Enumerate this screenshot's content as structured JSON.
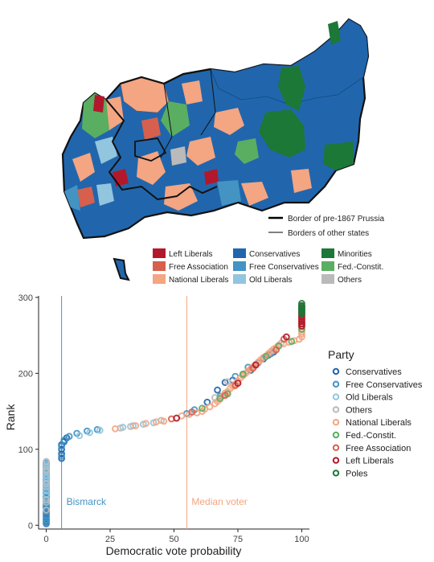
{
  "map": {
    "border_legend": [
      {
        "label": "Border of pre-1867 Prussia",
        "style": "thick"
      },
      {
        "label": "Borders of other states",
        "style": "thin"
      }
    ],
    "party_legend": [
      {
        "label": "Left Liberals",
        "color": "#b2182b"
      },
      {
        "label": "Conservatives",
        "color": "#2166ac"
      },
      {
        "label": "Minorities",
        "color": "#1b7837"
      },
      {
        "label": "Free Association",
        "color": "#d6604d"
      },
      {
        "label": "Free Conservatives",
        "color": "#4393c3"
      },
      {
        "label": "Fed.-Constit.",
        "color": "#5aae61"
      },
      {
        "label": "National Liberals",
        "color": "#f4a582"
      },
      {
        "label": "Old Liberals",
        "color": "#92c5de"
      },
      {
        "label": "Others",
        "color": "#bababa"
      }
    ]
  },
  "chart_data": {
    "type": "scatter",
    "xlabel": "Democratic vote probability",
    "ylabel": "Rank",
    "xlim": [
      -3,
      103
    ],
    "ylim": [
      -5,
      302
    ],
    "x_ticks": [
      0,
      25,
      50,
      75,
      100
    ],
    "y_ticks": [
      0,
      100,
      200,
      300
    ],
    "legend_position": "right",
    "legend_title": "Party",
    "vlines": [
      {
        "x": 6,
        "label": "Bismarck",
        "color": "#4393c3"
      },
      {
        "x": 55,
        "label": "Median voter",
        "color": "#f4a582"
      }
    ],
    "series": [
      {
        "name": "Conservatives",
        "color": "#2166ac",
        "x": [
          0,
          0,
          0,
          0,
          0,
          0,
          0,
          0,
          0,
          0,
          0,
          0,
          0,
          0,
          0,
          0,
          0,
          0,
          0,
          0,
          0,
          0,
          0,
          0,
          0,
          0,
          0,
          0,
          6,
          6,
          6,
          6,
          7,
          8,
          63,
          67,
          70,
          73,
          77,
          80,
          85,
          87,
          89
        ],
        "y": [
          2,
          5,
          8,
          11,
          14,
          17,
          20,
          23,
          26,
          29,
          32,
          35,
          38,
          41,
          44,
          47,
          50,
          53,
          56,
          59,
          62,
          65,
          68,
          71,
          74,
          77,
          80,
          82,
          88,
          94,
          100,
          106,
          110,
          115,
          162,
          178,
          188,
          191,
          198,
          204,
          219,
          224,
          228
        ]
      },
      {
        "name": "Free Conservatives",
        "color": "#4393c3",
        "x": [
          0,
          0,
          0,
          0,
          0,
          0,
          0,
          0,
          0,
          0,
          0,
          0,
          0,
          0,
          0,
          0,
          0,
          6,
          6,
          7,
          9,
          12,
          16,
          20,
          55,
          58,
          68,
          74,
          79,
          83,
          88
        ],
        "y": [
          3,
          7,
          12,
          18,
          24,
          30,
          36,
          42,
          47,
          52,
          57,
          61,
          66,
          71,
          76,
          79,
          81,
          91,
          104,
          112,
          117,
          121,
          124,
          126,
          147,
          152,
          170,
          196,
          208,
          214,
          226
        ]
      },
      {
        "name": "Old Liberals",
        "color": "#92c5de",
        "x": [
          0,
          0,
          0,
          0,
          0,
          0,
          0,
          0,
          0,
          0,
          0,
          0,
          0,
          0,
          13,
          17,
          21,
          30,
          34,
          38,
          42
        ],
        "y": [
          30,
          34,
          40,
          45,
          50,
          55,
          58,
          62,
          66,
          70,
          74,
          77,
          80,
          83,
          118,
          122,
          125,
          129,
          131,
          133,
          135
        ]
      },
      {
        "name": "Others",
        "color": "#bababa",
        "x": [
          0,
          0,
          0,
          0,
          0,
          29,
          33,
          45,
          66,
          71,
          92
        ],
        "y": [
          20,
          33,
          54,
          72,
          84,
          128,
          130,
          138,
          168,
          189,
          240
        ]
      },
      {
        "name": "National Liberals",
        "color": "#f4a582",
        "x": [
          27,
          35,
          39,
          43,
          46,
          53,
          56,
          59,
          61,
          62,
          64,
          66,
          67,
          68,
          69,
          70,
          71,
          72,
          73,
          74,
          75,
          76,
          77,
          78,
          79,
          80,
          81,
          82,
          83,
          84,
          85,
          86,
          87,
          88,
          89,
          90,
          91,
          93,
          95,
          97,
          99,
          100,
          100,
          100,
          100,
          100,
          100
        ],
        "y": [
          127,
          131,
          134,
          136,
          137,
          144,
          146,
          148,
          150,
          153,
          156,
          160,
          163,
          166,
          170,
          174,
          176,
          180,
          183,
          186,
          190,
          194,
          197,
          200,
          203,
          206,
          209,
          212,
          215,
          218,
          221,
          223,
          226,
          229,
          232,
          234,
          237,
          239,
          241,
          243,
          245,
          248,
          252,
          255,
          258,
          262,
          265
        ]
      },
      {
        "name": "Fed.-Constit.",
        "color": "#5aae61",
        "x": [
          61,
          68,
          71,
          77,
          86,
          91,
          96,
          100,
          100
        ],
        "y": [
          154,
          167,
          173,
          199,
          222,
          236,
          242,
          258,
          262
        ]
      },
      {
        "name": "Free Association",
        "color": "#d6604d",
        "x": [
          49,
          57,
          70,
          74,
          81,
          90,
          93,
          100,
          100,
          100,
          100,
          100,
          100
        ],
        "y": [
          140,
          149,
          171,
          184,
          207,
          231,
          245,
          265,
          268,
          271,
          274,
          277,
          280
        ]
      },
      {
        "name": "Left Liberals",
        "color": "#b2182b",
        "x": [
          51,
          75,
          82,
          94,
          100,
          100,
          100,
          100,
          100,
          100,
          100,
          100,
          100,
          100
        ],
        "y": [
          141,
          187,
          211,
          248,
          262,
          265,
          268,
          271,
          274,
          277,
          280,
          283,
          286,
          289
        ]
      },
      {
        "name": "Poles",
        "color": "#1b7837",
        "x": [
          100,
          100,
          100,
          100,
          100,
          100,
          100
        ],
        "y": [
          278,
          281,
          283,
          285,
          287,
          289,
          292
        ]
      }
    ]
  }
}
